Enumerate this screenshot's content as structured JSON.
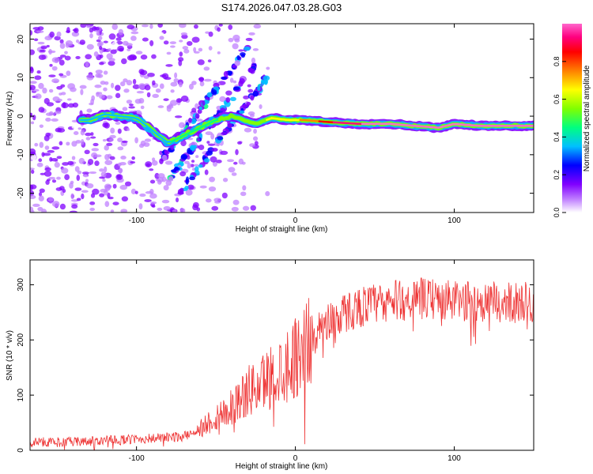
{
  "title": "S174.2026.047.03.28.G03",
  "chart_data": [
    {
      "type": "heatmap",
      "title": "S174.2026.047.03.28.G03",
      "xlabel": "Height of straight line (km)",
      "ylabel": "Frequency (Hz)",
      "xlim": [
        -167,
        150
      ],
      "ylim": [
        -25,
        24
      ],
      "x_ticks": [
        -100,
        0,
        100
      ],
      "y_ticks": [
        -20,
        -10,
        0,
        10,
        20
      ],
      "colorbar": {
        "label": "Normalized spectral amplitude",
        "range": [
          0,
          1
        ],
        "ticks": [
          0.0,
          0.2,
          0.4,
          0.6,
          0.8
        ],
        "colors": [
          "#ffffff",
          "#c080ff",
          "#8000ff",
          "#0000ff",
          "#00c0ff",
          "#00ff80",
          "#80ff00",
          "#ffff00",
          "#ff8000",
          "#ff0000",
          "#ff0080",
          "#ff66cc"
        ]
      },
      "ridge": [
        {
          "x": -130,
          "f": -1.0,
          "a": 0.25
        },
        {
          "x": -120,
          "f": 0.5,
          "a": 0.3
        },
        {
          "x": -110,
          "f": 0.0,
          "a": 0.3
        },
        {
          "x": -100,
          "f": -0.5,
          "a": 0.25
        },
        {
          "x": -80,
          "f": -7.0,
          "a": 0.3
        },
        {
          "x": -70,
          "f": -5.0,
          "a": 0.35
        },
        {
          "x": -60,
          "f": -3.0,
          "a": 0.35
        },
        {
          "x": -50,
          "f": -1.0,
          "a": 0.4
        },
        {
          "x": -40,
          "f": 0.0,
          "a": 0.4
        },
        {
          "x": -25,
          "f": -2.0,
          "a": 0.45
        },
        {
          "x": -15,
          "f": -0.5,
          "a": 0.55
        },
        {
          "x": -5,
          "f": -1.0,
          "a": 0.55
        },
        {
          "x": 5,
          "f": -1.0,
          "a": 0.6
        },
        {
          "x": 20,
          "f": -1.5,
          "a": 0.75
        },
        {
          "x": 40,
          "f": -2.0,
          "a": 0.85
        },
        {
          "x": 60,
          "f": -2.0,
          "a": 0.9
        },
        {
          "x": 75,
          "f": -2.5,
          "a": 0.9
        },
        {
          "x": 90,
          "f": -3.0,
          "a": 0.95
        },
        {
          "x": 100,
          "f": -2.0,
          "a": 0.95
        },
        {
          "x": 115,
          "f": -2.5,
          "a": 0.95
        },
        {
          "x": 130,
          "f": -2.5,
          "a": 0.95
        },
        {
          "x": 148,
          "f": -2.5,
          "a": 0.95
        }
      ]
    },
    {
      "type": "line",
      "xlabel": "Height of straight line (km)",
      "ylabel": "SNR (10 * v/v)",
      "xlim": [
        -167,
        150
      ],
      "ylim": [
        0,
        345
      ],
      "x_ticks": [
        -100,
        0,
        100
      ],
      "y_ticks": [
        0,
        100,
        200,
        300
      ],
      "color": "#ee3333",
      "envelope": [
        {
          "x": -167,
          "y": 15
        },
        {
          "x": -140,
          "y": 15
        },
        {
          "x": -100,
          "y": 20
        },
        {
          "x": -70,
          "y": 25
        },
        {
          "x": -60,
          "y": 40
        },
        {
          "x": -50,
          "y": 60
        },
        {
          "x": -40,
          "y": 80
        },
        {
          "x": -30,
          "y": 105
        },
        {
          "x": -20,
          "y": 125
        },
        {
          "x": -10,
          "y": 145
        },
        {
          "x": 0,
          "y": 170
        },
        {
          "x": 10,
          "y": 205
        },
        {
          "x": 20,
          "y": 235
        },
        {
          "x": 40,
          "y": 260
        },
        {
          "x": 60,
          "y": 270
        },
        {
          "x": 80,
          "y": 275
        },
        {
          "x": 100,
          "y": 270
        },
        {
          "x": 120,
          "y": 268
        },
        {
          "x": 150,
          "y": 268
        }
      ]
    }
  ]
}
